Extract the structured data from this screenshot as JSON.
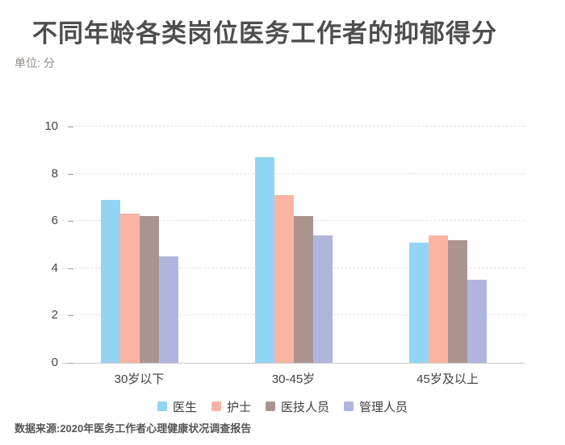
{
  "header": {
    "title": "不同年龄各类岗位医务工作者的抑郁得分",
    "unit_label": "单位: 分"
  },
  "chart_data": {
    "type": "bar",
    "title": "不同年龄各类岗位医务工作者的抑郁得分",
    "xlabel": "",
    "ylabel": "分",
    "ylim": [
      0,
      10
    ],
    "yticks": [
      0,
      2,
      4,
      6,
      8,
      10
    ],
    "grid": true,
    "grid_style": "dashed",
    "legend_position": "bottom",
    "categories": [
      "30岁以下",
      "30-45岁",
      "45岁及以上"
    ],
    "series": [
      {
        "name": "医生",
        "color": "#92d5f4",
        "values": [
          6.9,
          8.7,
          5.1
        ]
      },
      {
        "name": "护士",
        "color": "#fcb4a2",
        "values": [
          6.3,
          7.1,
          5.4
        ]
      },
      {
        "name": "医技人员",
        "color": "#ab9490",
        "values": [
          6.2,
          6.2,
          5.2
        ]
      },
      {
        "name": "管理人员",
        "color": "#afb5dd",
        "values": [
          4.5,
          5.4,
          3.5
        ]
      }
    ]
  },
  "footer": {
    "source": "数据来源:2020年医务工作者心理健康状况调查报告"
  }
}
